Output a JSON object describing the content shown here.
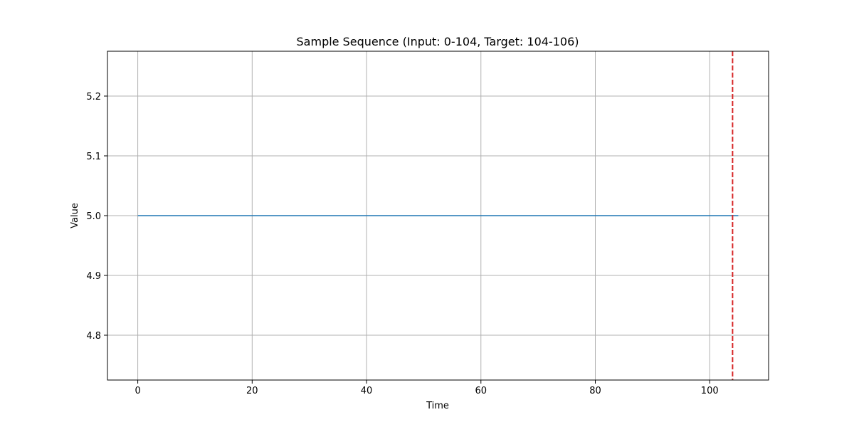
{
  "chart_data": {
    "type": "line",
    "title": "Sample Sequence (Input: 0-104, Target: 104-106)",
    "xlabel": "Time",
    "ylabel": "Value",
    "xlim": [
      -5.3,
      110.3
    ],
    "ylim": [
      4.725,
      5.275
    ],
    "x_ticks": [
      0,
      20,
      40,
      60,
      80,
      100
    ],
    "x_tick_labels": [
      "0",
      "20",
      "40",
      "60",
      "80",
      "100"
    ],
    "y_ticks": [
      4.8,
      4.9,
      5.0,
      5.1,
      5.2
    ],
    "y_tick_labels": [
      "4.8",
      "4.9",
      "5.0",
      "5.1",
      "5.2"
    ],
    "grid": true,
    "series": [
      {
        "x": [
          0,
          105
        ],
        "values": [
          5.0,
          5.0
        ],
        "color": "#1f77b4"
      }
    ],
    "vlines": [
      {
        "x": 104,
        "color": "#d62728",
        "style": "dashed"
      }
    ]
  }
}
